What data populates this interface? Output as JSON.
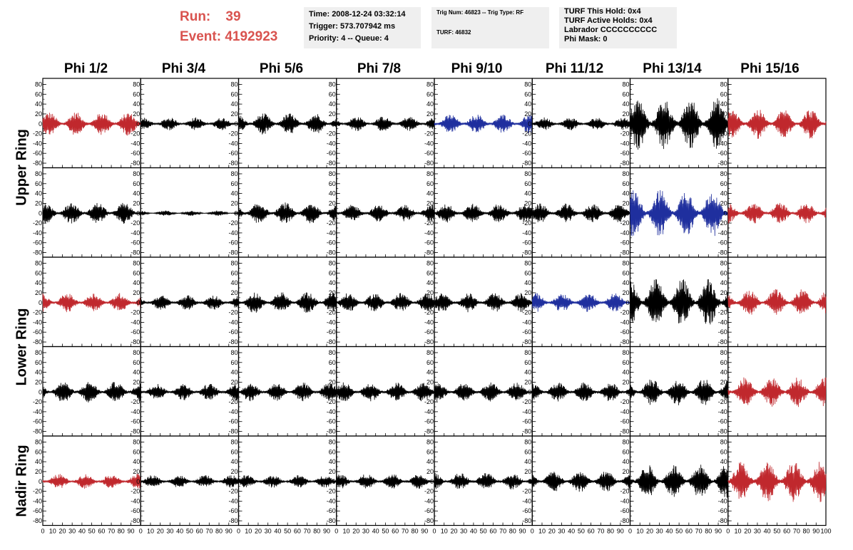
{
  "header": {
    "run_label": "Run:",
    "run_value": "39",
    "event_label": "Event:",
    "event_value": "4192923",
    "time": "Time: 2008-12-24 03:32:14",
    "trigger": "Trigger: 573.707942 ms",
    "priority_queue": "Priority: 4 -- Queue: 4",
    "trig_num_type": "Trig Num: 46823 -- Trig Type: RF",
    "turf": "TURF: 46832",
    "turf_this_hold": "TURF This Hold: 0x4",
    "turf_active_holds": "TURF Active Holds: 0x4",
    "labrador": "Labrador CCCCCCCCCC",
    "phi_mask": "Phi Mask: 0"
  },
  "columns": [
    "Phi 1/2",
    "Phi 3/4",
    "Phi 5/6",
    "Phi 7/8",
    "Phi 9/10",
    "Phi 11/12",
    "Phi 13/14",
    "Phi 15/16"
  ],
  "ring_labels": [
    "Upper Ring",
    "Lower Ring",
    "Nadir Ring"
  ],
  "axes": {
    "y_ticks": [
      80,
      60,
      40,
      20,
      0,
      -20,
      -40,
      -60,
      -80
    ],
    "y_range": [
      -85,
      85
    ],
    "x_ticks": [
      0,
      10,
      20,
      30,
      40,
      50,
      60,
      70,
      80,
      90,
      100
    ],
    "x_range": [
      0,
      100
    ]
  },
  "colors": {
    "black": "#000000",
    "red": "#c0282d",
    "blue": "#1f2f9e"
  },
  "chart_data": {
    "type": "line",
    "rows": 5,
    "cols": 8,
    "panels": [
      [
        {
          "color": "red",
          "amp": 22
        },
        {
          "color": "black",
          "amp": 12
        },
        {
          "color": "black",
          "amp": 20
        },
        {
          "color": "black",
          "amp": 14
        },
        {
          "color": "blue",
          "amp": 18
        },
        {
          "color": "black",
          "amp": 12
        },
        {
          "color": "black",
          "amp": 48
        },
        {
          "color": "red",
          "amp": 28
        }
      ],
      [
        {
          "color": "black",
          "amp": 20
        },
        {
          "color": "black",
          "amp": 5
        },
        {
          "color": "black",
          "amp": 20
        },
        {
          "color": "black",
          "amp": 16
        },
        {
          "color": "black",
          "amp": 18
        },
        {
          "color": "black",
          "amp": 18
        },
        {
          "color": "blue",
          "amp": 45
        },
        {
          "color": "red",
          "amp": 20
        }
      ],
      [
        {
          "color": "red",
          "amp": 18
        },
        {
          "color": "black",
          "amp": 14
        },
        {
          "color": "black",
          "amp": 20
        },
        {
          "color": "black",
          "amp": 18
        },
        {
          "color": "black",
          "amp": 18
        },
        {
          "color": "blue",
          "amp": 18
        },
        {
          "color": "black",
          "amp": 45
        },
        {
          "color": "red",
          "amp": 25
        }
      ],
      [
        {
          "color": "black",
          "amp": 20
        },
        {
          "color": "black",
          "amp": 16
        },
        {
          "color": "black",
          "amp": 18
        },
        {
          "color": "black",
          "amp": 18
        },
        {
          "color": "black",
          "amp": 18
        },
        {
          "color": "black",
          "amp": 18
        },
        {
          "color": "black",
          "amp": 25
        },
        {
          "color": "red",
          "amp": 28
        }
      ],
      [
        {
          "color": "red",
          "amp": 14
        },
        {
          "color": "black",
          "amp": 12
        },
        {
          "color": "black",
          "amp": 12
        },
        {
          "color": "black",
          "amp": 14
        },
        {
          "color": "black",
          "amp": 16
        },
        {
          "color": "black",
          "amp": 20
        },
        {
          "color": "black",
          "amp": 32
        },
        {
          "color": "red",
          "amp": 38
        }
      ]
    ]
  }
}
